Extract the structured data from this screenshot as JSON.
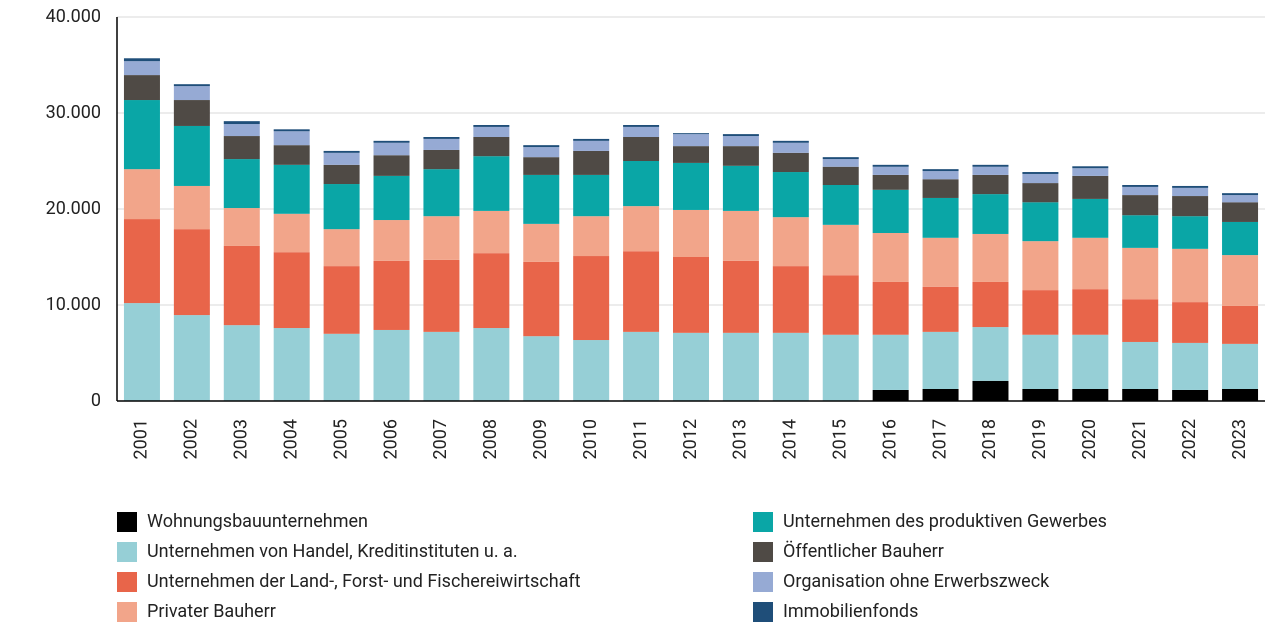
{
  "chart_data": {
    "type": "stacked_bar",
    "categories": [
      "2001",
      "2002",
      "2003",
      "2004",
      "2005",
      "2006",
      "2007",
      "2008",
      "2009",
      "2010",
      "2011",
      "2012",
      "2013",
      "2014",
      "2015",
      "2016",
      "2017",
      "2018",
      "2019",
      "2020",
      "2021",
      "2022",
      "2023"
    ],
    "series": [
      {
        "name": "Wohnungsbauunternehmen",
        "color": "#000000",
        "values": [
          0,
          0,
          0,
          0,
          0,
          0,
          0,
          0,
          0,
          0,
          0,
          0,
          0,
          0,
          0,
          1150,
          1250,
          2100,
          1250,
          1250,
          1250,
          1150,
          1250
        ]
      },
      {
        "name": "Unternehmen von Handel, Kreditinstituten u. a.",
        "color": "#96cfd6",
        "values": [
          10200,
          8950,
          7900,
          7600,
          7000,
          7400,
          7200,
          7600,
          6750,
          6350,
          7200,
          7100,
          7100,
          7100,
          6900,
          5750,
          5950,
          5600,
          5650,
          5650,
          4900,
          4900,
          4700
        ]
      },
      {
        "name": "Unternehmen der Land-, Forst- und Fischereiwirtschaft",
        "color": "#e8654a",
        "values": [
          8750,
          8950,
          8250,
          7900,
          7050,
          7200,
          7500,
          7800,
          7750,
          8750,
          8400,
          7900,
          7500,
          6950,
          6200,
          5500,
          4700,
          4700,
          4650,
          4750,
          4450,
          4250,
          3950
        ]
      },
      {
        "name": "Privater Bauherr",
        "color": "#f2a58a",
        "values": [
          5200,
          4500,
          3950,
          4000,
          3850,
          4250,
          4550,
          4400,
          3950,
          4150,
          4700,
          4900,
          5200,
          5100,
          5250,
          5100,
          5100,
          5000,
          5100,
          5350,
          5350,
          5550,
          5300
        ]
      },
      {
        "name": "Unternehmen des produktiven Gewerbes",
        "color": "#0aa6a6",
        "values": [
          7200,
          6250,
          5100,
          5100,
          4700,
          4600,
          4900,
          5700,
          5100,
          4300,
          4700,
          4900,
          4700,
          4700,
          4150,
          4500,
          4150,
          4150,
          4050,
          4050,
          3400,
          3400,
          3450
        ]
      },
      {
        "name": "Öffentlicher Bauherr",
        "color": "#4f4a45",
        "values": [
          2600,
          2700,
          2400,
          2050,
          2000,
          2150,
          2000,
          2000,
          1850,
          2500,
          2500,
          1750,
          2050,
          2000,
          1900,
          1550,
          1950,
          2000,
          2000,
          2400,
          2100,
          2100,
          2050
        ]
      },
      {
        "name": "Organisation ohne Erwerbszweck",
        "color": "#96aad4",
        "values": [
          1450,
          1450,
          1250,
          1450,
          1250,
          1300,
          1150,
          1050,
          1050,
          1050,
          1050,
          1250,
          1050,
          1050,
          800,
          850,
          850,
          850,
          950,
          800,
          850,
          850,
          750
        ]
      },
      {
        "name": "Immobilienfonds",
        "color": "#1f4e79",
        "values": [
          300,
          200,
          300,
          200,
          200,
          200,
          200,
          200,
          200,
          200,
          200,
          100,
          200,
          200,
          200,
          200,
          200,
          200,
          200,
          200,
          200,
          200,
          200
        ]
      }
    ],
    "ylim": [
      0,
      40000
    ],
    "yticks": [
      0,
      {
        "value": 10000,
        "label": "10.000"
      },
      {
        "value": 20000,
        "label": "20.000"
      },
      {
        "value": 30000,
        "label": "30.000"
      },
      {
        "value": 40000,
        "label": "40.000"
      }
    ],
    "grid": true
  }
}
